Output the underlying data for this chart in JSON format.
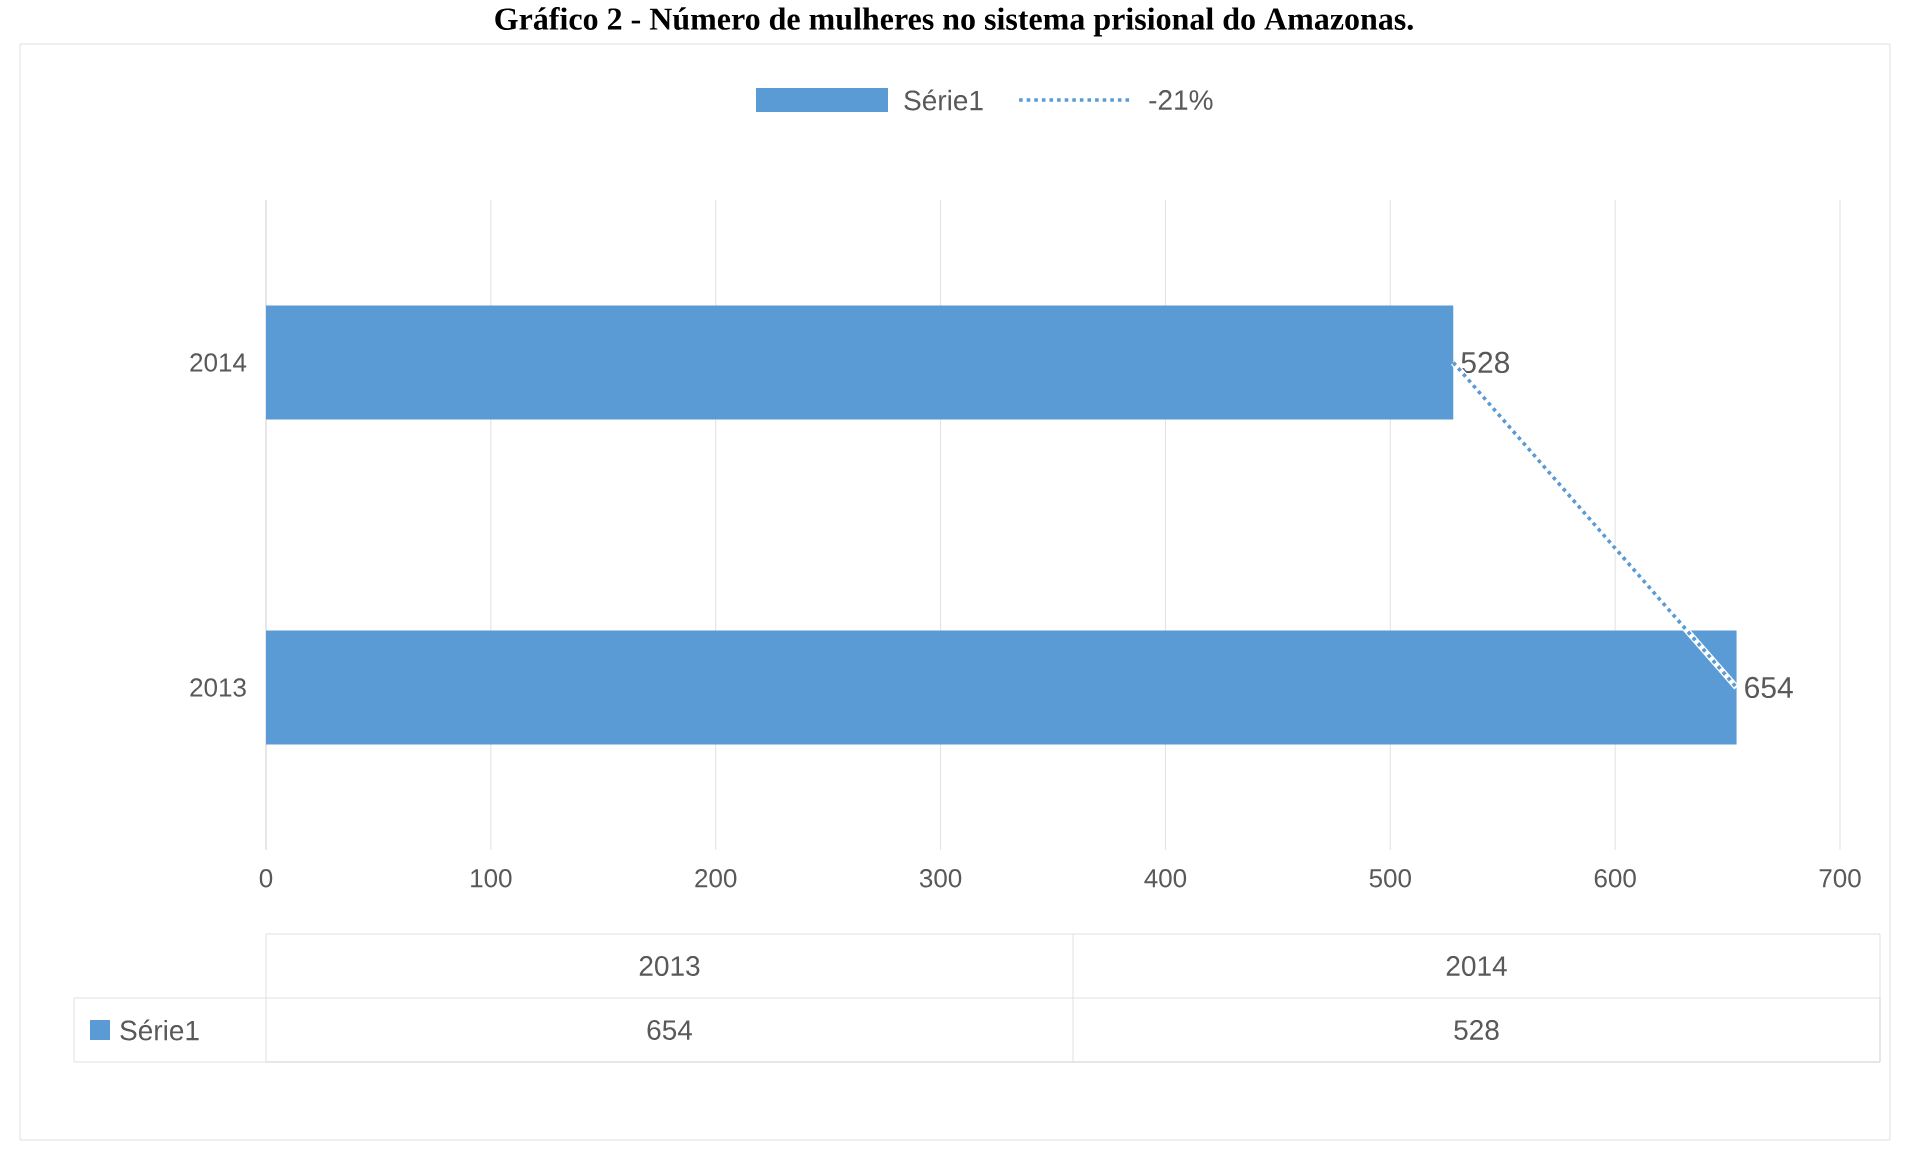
{
  "chart_data": {
    "type": "bar",
    "orientation": "horizontal",
    "title": "Gráfico 2 - Número de mulheres no sistema prisional do Amazonas.",
    "categories": [
      "2014",
      "2013"
    ],
    "series": [
      {
        "name": "Série1",
        "color": "#5b9bd5",
        "values": [
          528,
          654
        ],
        "value_labels": [
          "528",
          "654"
        ]
      },
      {
        "name": "-21%",
        "type": "line",
        "line_style": "dotted",
        "color": "#5b9bd5",
        "values": [
          528,
          654
        ]
      }
    ],
    "xlim": [
      0,
      700
    ],
    "xticks": [
      0,
      100,
      200,
      300,
      400,
      500,
      600,
      700
    ],
    "grid": "x",
    "legend": "top",
    "annotations": [
      "654",
      "528"
    ]
  }
}
